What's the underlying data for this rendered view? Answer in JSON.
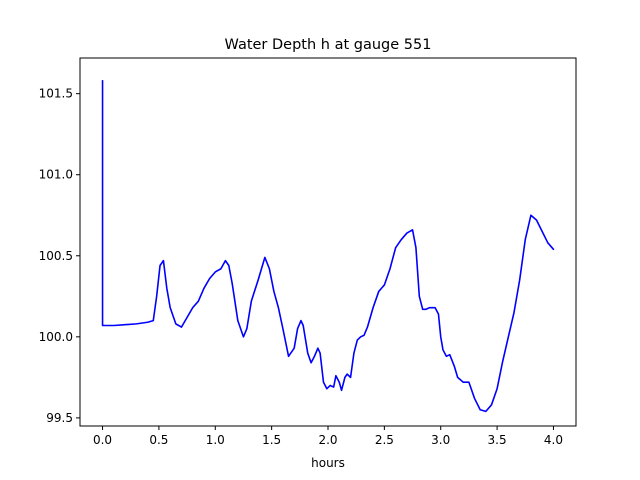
{
  "chart_data": {
    "type": "line",
    "title": "Water Depth h at gauge 551",
    "xlabel": "hours",
    "ylabel": "",
    "xlim": [
      -0.2,
      4.2
    ],
    "ylim": [
      99.45,
      101.72
    ],
    "xticks": [
      0.0,
      0.5,
      1.0,
      1.5,
      2.0,
      2.5,
      3.0,
      3.5,
      4.0
    ],
    "xtick_labels": [
      "0.0",
      "0.5",
      "1.0",
      "1.5",
      "2.0",
      "2.5",
      "3.0",
      "3.5",
      "4.0"
    ],
    "yticks": [
      99.5,
      100.0,
      100.5,
      101.0,
      101.5
    ],
    "ytick_labels": [
      "99.5",
      "100.0",
      "100.5",
      "101.0",
      "101.5"
    ],
    "grid": false,
    "series": [
      {
        "name": "",
        "color": "#0000ff",
        "x": [
          0,
          0,
          0.01,
          0.1,
          0.2,
          0.3,
          0.4,
          0.45,
          0.48,
          0.51,
          0.54,
          0.57,
          0.6,
          0.65,
          0.7,
          0.75,
          0.8,
          0.85,
          0.9,
          0.95,
          1.0,
          1.05,
          1.09,
          1.12,
          1.15,
          1.2,
          1.25,
          1.28,
          1.32,
          1.38,
          1.44,
          1.48,
          1.52,
          1.56,
          1.6,
          1.65,
          1.7,
          1.73,
          1.76,
          1.78,
          1.82,
          1.85,
          1.88,
          1.91,
          1.93,
          1.96,
          1.99,
          2.02,
          2.05,
          2.07,
          2.1,
          2.12,
          2.15,
          2.17,
          2.2,
          2.23,
          2.26,
          2.29,
          2.32,
          2.35,
          2.4,
          2.45,
          2.5,
          2.55,
          2.6,
          2.65,
          2.7,
          2.75,
          2.78,
          2.81,
          2.84,
          2.87,
          2.9,
          2.95,
          2.98,
          3.0,
          3.02,
          3.05,
          3.08,
          3.12,
          3.15,
          3.2,
          3.25,
          3.3,
          3.35,
          3.4,
          3.45,
          3.5,
          3.55,
          3.6,
          3.65,
          3.7,
          3.75,
          3.8,
          3.85,
          3.9,
          3.95,
          4.0
        ],
        "y": [
          101.58,
          100.07,
          100.07,
          100.07,
          100.075,
          100.08,
          100.09,
          100.1,
          100.25,
          100.44,
          100.47,
          100.3,
          100.18,
          100.08,
          100.06,
          100.12,
          100.18,
          100.22,
          100.3,
          100.36,
          100.4,
          100.42,
          100.47,
          100.44,
          100.33,
          100.1,
          100.0,
          100.05,
          100.22,
          100.35,
          100.49,
          100.42,
          100.28,
          100.18,
          100.05,
          99.88,
          99.93,
          100.05,
          100.1,
          100.07,
          99.9,
          99.84,
          99.88,
          99.93,
          99.9,
          99.72,
          99.68,
          99.7,
          99.69,
          99.76,
          99.72,
          99.67,
          99.75,
          99.77,
          99.75,
          99.9,
          99.98,
          100.0,
          100.01,
          100.06,
          100.18,
          100.28,
          100.32,
          100.42,
          100.55,
          100.6,
          100.64,
          100.66,
          100.55,
          100.25,
          100.17,
          100.17,
          100.18,
          100.18,
          100.14,
          100.0,
          99.92,
          99.88,
          99.89,
          99.82,
          99.75,
          99.72,
          99.72,
          99.62,
          99.55,
          99.54,
          99.58,
          99.68,
          99.85,
          100.0,
          100.15,
          100.35,
          100.6,
          100.75,
          100.72,
          100.65,
          100.58,
          100.54
        ]
      }
    ]
  }
}
